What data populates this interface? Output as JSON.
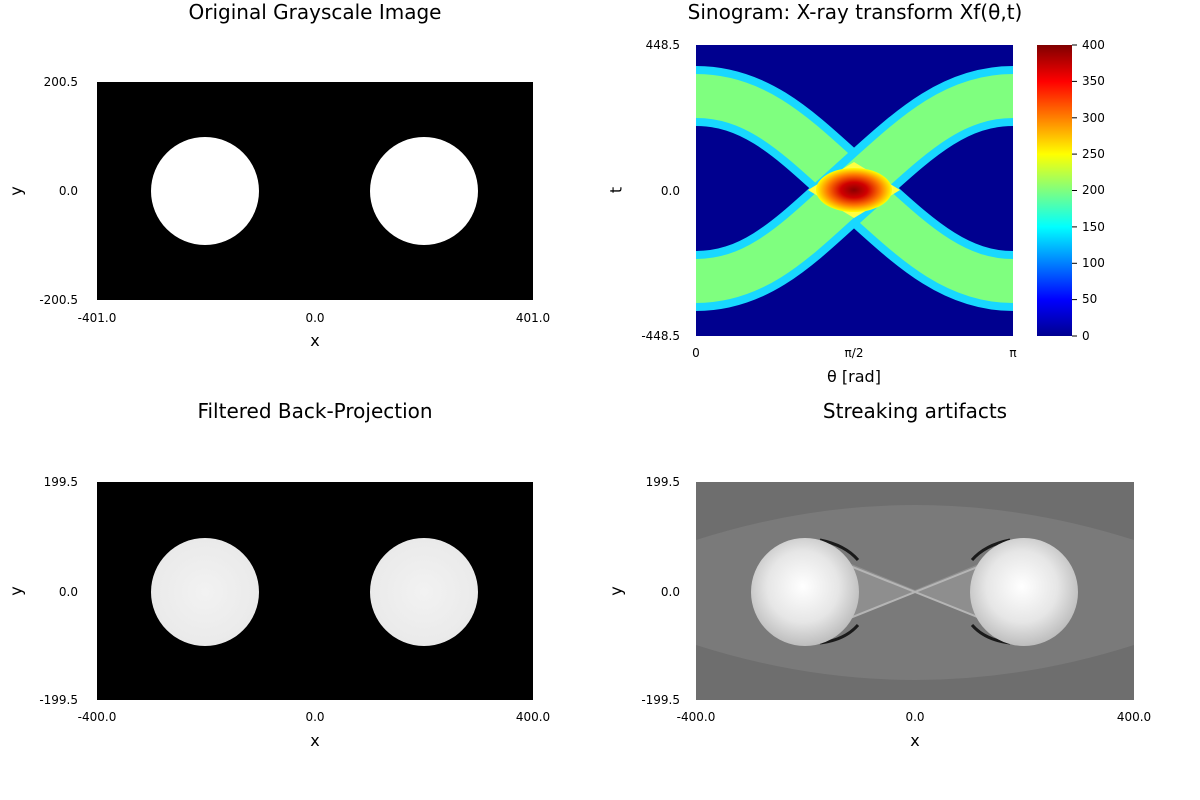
{
  "chart_data": [
    {
      "type": "heatmap",
      "title": "Original Grayscale Image",
      "xlabel": "x",
      "ylabel": "y",
      "xticks": [
        "-401.0",
        "0.0",
        "401.0"
      ],
      "yticks": [
        "200.5",
        "0.0",
        "-200.5"
      ],
      "xlim": [
        -401.0,
        401.0
      ],
      "ylim": [
        -200.5,
        200.5
      ],
      "colormap": "grayscale",
      "objects": [
        {
          "shape": "disk",
          "cx": -200,
          "cy": 0,
          "r": 100,
          "value": 1
        },
        {
          "shape": "disk",
          "cx": 200,
          "cy": 0,
          "r": 100,
          "value": 1
        }
      ]
    },
    {
      "type": "heatmap",
      "title": "Sinogram: X-ray transform Xf(θ,t)",
      "xlabel": "θ [rad]",
      "ylabel": "t",
      "xticks": [
        "0",
        "π/2",
        "π"
      ],
      "yticks": [
        "448.5",
        "0.0",
        "-448.5"
      ],
      "xlim": [
        0,
        3.1416
      ],
      "ylim": [
        -448.5,
        448.5
      ],
      "colormap": "jet",
      "colorbar": {
        "ticks": [
          "400",
          "350",
          "300",
          "250",
          "200",
          "150",
          "100",
          "50",
          "0"
        ],
        "range": [
          0,
          400
        ]
      }
    },
    {
      "type": "heatmap",
      "title": "Filtered Back-Projection",
      "xlabel": "x",
      "ylabel": "y",
      "xticks": [
        "-400.0",
        "0.0",
        "400.0"
      ],
      "yticks": [
        "199.5",
        "0.0",
        "-199.5"
      ],
      "xlim": [
        -400.0,
        400.0
      ],
      "ylim": [
        -199.5,
        199.5
      ],
      "colormap": "grayscale"
    },
    {
      "type": "heatmap",
      "title": "Streaking artifacts",
      "xlabel": "x",
      "ylabel": "y",
      "xticks": [
        "-400.0",
        "0.0",
        "400.0"
      ],
      "yticks": [
        "199.5",
        "0.0",
        "-199.5"
      ],
      "xlim": [
        -400.0,
        400.0
      ],
      "ylim": [
        -199.5,
        199.5
      ],
      "colormap": "grayscale"
    }
  ]
}
